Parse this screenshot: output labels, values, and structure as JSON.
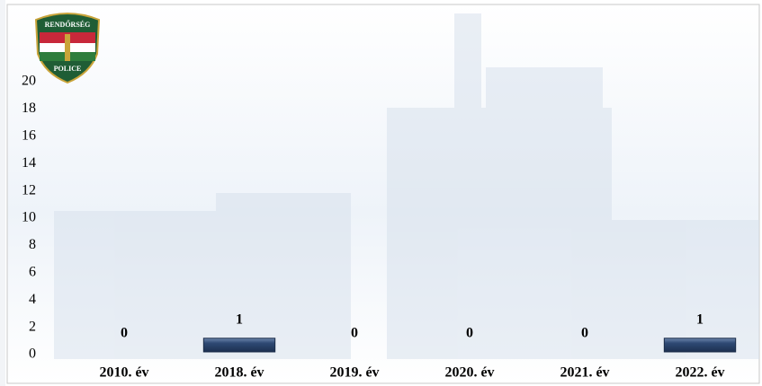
{
  "logo": {
    "top": "RENDŐRSÉG",
    "bottom": "POLICE"
  },
  "chart_data": {
    "type": "bar",
    "categories": [
      "2010. év",
      "2018. év",
      "2019. év",
      "2020. év",
      "2021. év",
      "2022. év"
    ],
    "values": [
      0,
      1,
      0,
      0,
      0,
      1
    ],
    "color": "#33507c",
    "ylim": [
      0,
      20
    ],
    "yticks": [
      0,
      2,
      4,
      6,
      8,
      10,
      12,
      14,
      16,
      18,
      20
    ],
    "grid": false,
    "data_labels": true
  }
}
